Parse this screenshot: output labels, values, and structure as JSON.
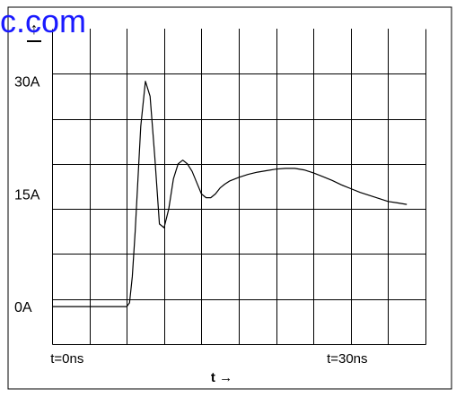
{
  "watermark_text": "c.com",
  "chart_data": {
    "type": "line",
    "title": "",
    "ylabel": "",
    "xlabel": "t →",
    "y_axis_marker": "↑",
    "ylim": [
      -5,
      37
    ],
    "xlim": [
      -2,
      38
    ],
    "y_ticks": [
      {
        "value": 0,
        "label": "0A"
      },
      {
        "value": 15,
        "label": "15A"
      },
      {
        "value": 30,
        "label": "30A"
      }
    ],
    "x_ticks": [
      {
        "value": 0,
        "label": "t=0ns"
      },
      {
        "value": 30,
        "label": "t=30ns"
      }
    ],
    "grid": true,
    "grid_x_count": 10,
    "grid_y_count": 7,
    "series": [
      {
        "color": "#000000",
        "x": [
          -2,
          6.0,
          6.3,
          6.6,
          6.9,
          7.2,
          7.5,
          8.0,
          8.5,
          9.0,
          9.5,
          10.0,
          10.5,
          11.0,
          11.5,
          12.0,
          12.5,
          13.0,
          13.5,
          14.0,
          14.5,
          15.0,
          15.5,
          16.0,
          16.5,
          17.0,
          18.0,
          19.0,
          20.0,
          21.0,
          22.0,
          23.0,
          24.0,
          25.0,
          26.0,
          27.0,
          28.0,
          29.0,
          30.0,
          31.0,
          32.0,
          33.0,
          34.0,
          35.0,
          36.0
        ],
        "y": [
          0,
          0,
          0.5,
          4.0,
          10.0,
          17.0,
          24.0,
          30.0,
          28.0,
          20.0,
          11.0,
          10.5,
          13.0,
          17.0,
          19.0,
          19.5,
          19.0,
          18.0,
          16.5,
          15.0,
          14.5,
          14.5,
          15.0,
          15.8,
          16.3,
          16.7,
          17.2,
          17.6,
          17.9,
          18.1,
          18.3,
          18.4,
          18.4,
          18.2,
          17.8,
          17.3,
          16.8,
          16.2,
          15.7,
          15.2,
          14.8,
          14.4,
          14.0,
          13.8,
          13.6
        ]
      }
    ]
  }
}
